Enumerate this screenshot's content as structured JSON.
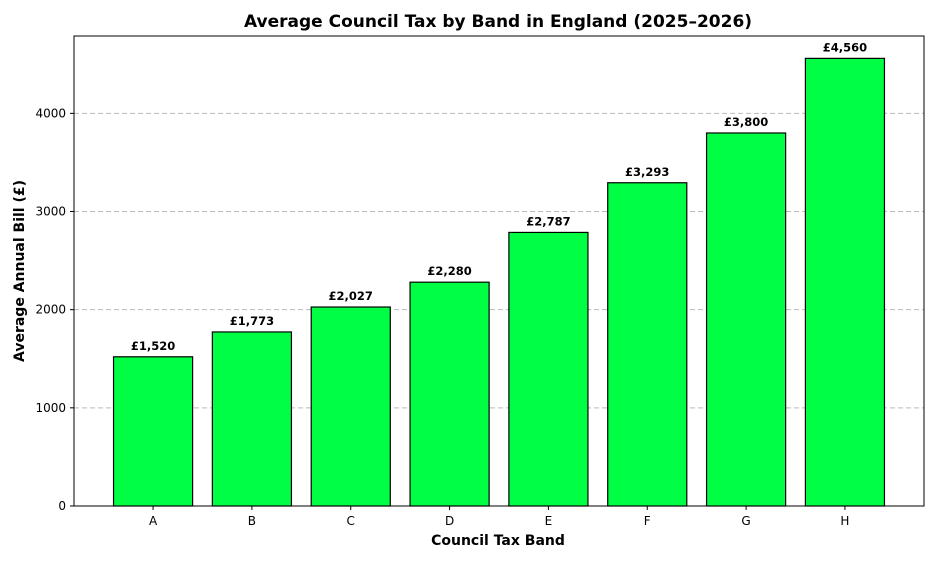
{
  "chart_data": {
    "type": "bar",
    "title": "Average Council Tax by Band in England (2025–2026)",
    "xlabel": "Council Tax Band",
    "ylabel": "Average Annual Bill (£)",
    "categories": [
      "A",
      "B",
      "C",
      "D",
      "E",
      "F",
      "G",
      "H"
    ],
    "values": [
      1520,
      1773,
      2027,
      2280,
      2787,
      3293,
      3800,
      4560
    ],
    "value_labels": [
      "£1,520",
      "£1,773",
      "£2,027",
      "£2,280",
      "£2,787",
      "£3,293",
      "£3,800",
      "£4,560"
    ],
    "ylim": [
      0,
      4788
    ],
    "yticks": [
      0,
      1000,
      2000,
      3000,
      4000
    ],
    "grid": "y",
    "bar_color": "#00ff44",
    "edge_color": "#000000"
  }
}
